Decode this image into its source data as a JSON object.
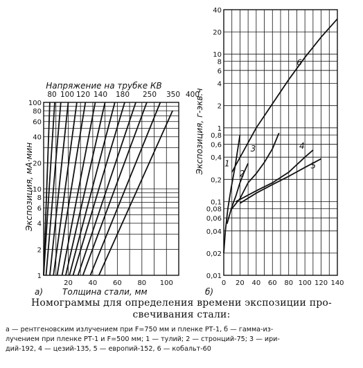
{
  "chart_data": [
    {
      "panel": "а)",
      "type": "line",
      "title": "Напряжение на трубке КВ",
      "xlabel": "Толщина стали, мм",
      "ylabel": "Экспозиция, мА·мин",
      "x_axis": {
        "min": 0,
        "max": 110,
        "scale": "linear",
        "ticks": [
          20,
          40,
          60,
          80,
          100
        ]
      },
      "y_axis": {
        "min": 1,
        "max": 100,
        "scale": "log",
        "ticks": [
          1,
          2,
          4,
          6,
          8,
          10,
          20,
          40,
          60,
          80,
          100
        ],
        "tick_labels": [
          "1",
          "2",
          "4",
          "6",
          "8",
          "10",
          "20",
          "40",
          "60",
          "80",
          "100"
        ]
      },
      "voltage_labels": [
        "80",
        "100",
        "120",
        "140",
        "180",
        "250",
        "350",
        "400"
      ],
      "grid": true,
      "series": [
        {
          "x": [
            0,
            5
          ],
          "y": [
            1,
            100
          ]
        },
        {
          "x": [
            0,
            9
          ],
          "y": [
            1,
            100
          ]
        },
        {
          "x": [
            2,
            14
          ],
          "y": [
            1,
            100
          ]
        },
        {
          "x": [
            5,
            20
          ],
          "y": [
            1,
            100
          ]
        },
        {
          "x": [
            8,
            27
          ],
          "y": [
            1,
            100
          ]
        },
        {
          "x": [
            11,
            34
          ],
          "y": [
            1,
            100
          ]
        },
        {
          "x": [
            15,
            42
          ],
          "y": [
            1,
            100
          ]
        },
        {
          "x": [
            18,
            50
          ],
          "y": [
            1,
            100
          ]
        },
        {
          "x": [
            21,
            58
          ],
          "y": [
            1,
            100
          ]
        },
        {
          "x": [
            24,
            66
          ],
          "y": [
            1,
            100
          ]
        },
        {
          "x": [
            28,
            75
          ],
          "y": [
            1,
            100
          ]
        },
        {
          "x": [
            32,
            84
          ],
          "y": [
            1,
            100
          ]
        },
        {
          "x": [
            38,
            95
          ],
          "y": [
            1,
            100
          ]
        },
        {
          "x": [
            45,
            105
          ],
          "y": [
            1,
            80
          ]
        }
      ]
    },
    {
      "panel": "б)",
      "type": "line",
      "ylabel": "Экспозиция, г-экв.ч",
      "x_axis": {
        "min": 0,
        "max": 140,
        "scale": "linear",
        "ticks": [
          0,
          20,
          40,
          60,
          80,
          100,
          120,
          140
        ],
        "tick_labels": [
          "0",
          "20",
          "40",
          "60",
          "80",
          "100",
          "120",
          "140"
        ]
      },
      "y_axis": {
        "min": 0.01,
        "max": 40,
        "scale": "log",
        "ticks": [
          0.01,
          0.02,
          0.04,
          0.06,
          0.08,
          0.1,
          0.2,
          0.4,
          0.6,
          0.8,
          1,
          2,
          4,
          6,
          8,
          10,
          20,
          40
        ],
        "tick_labels": [
          "0,01",
          "0,02",
          "0,04",
          "0,06",
          "0,08",
          "0,1",
          "0,2",
          "0,4",
          "0,6",
          "0,8",
          "1",
          "2",
          "4",
          "6",
          "8",
          "10",
          "20",
          "40"
        ]
      },
      "grid": true,
      "series": [
        {
          "name": "1",
          "x": [
            0,
            2,
            5,
            9,
            14,
            20
          ],
          "y": [
            0.02,
            0.04,
            0.08,
            0.15,
            0.3,
            0.8
          ]
        },
        {
          "name": "2",
          "x": [
            4,
            10,
            15,
            20,
            25,
            30
          ],
          "y": [
            0.05,
            0.085,
            0.12,
            0.18,
            0.25,
            0.33
          ]
        },
        {
          "name": "3",
          "x": [
            10,
            20,
            30,
            40,
            50,
            60,
            68
          ],
          "y": [
            0.08,
            0.11,
            0.18,
            0.24,
            0.34,
            0.52,
            0.85
          ]
        },
        {
          "name": "4",
          "x": [
            15,
            40,
            60,
            80,
            100,
            110
          ],
          "y": [
            0.1,
            0.14,
            0.18,
            0.25,
            0.4,
            0.5
          ]
        },
        {
          "name": "5",
          "x": [
            20,
            40,
            60,
            80,
            100,
            120
          ],
          "y": [
            0.095,
            0.13,
            0.17,
            0.22,
            0.29,
            0.38
          ]
        },
        {
          "name": "6",
          "x": [
            10,
            40,
            80,
            100,
            120,
            140
          ],
          "y": [
            0.25,
            1.0,
            4.5,
            9.0,
            17,
            30
          ]
        }
      ]
    }
  ],
  "caption": {
    "title_line1": "Номограммы для определения времени экспозиции про-",
    "title_line2": "свечивания стали:",
    "legend_line1": "а — рентгеновским излучением при F=750 мм и пленке РТ-1, б — гамма-из-",
    "legend_line2": "лучением при пленке РТ-1 и F=500 мм; 1 — тулий; 2 — стронций-75; 3 — ири-",
    "legend_line3": "дий-192, 4 — цезий-135, 5 — европий-152, 6 — кобальт-60"
  }
}
